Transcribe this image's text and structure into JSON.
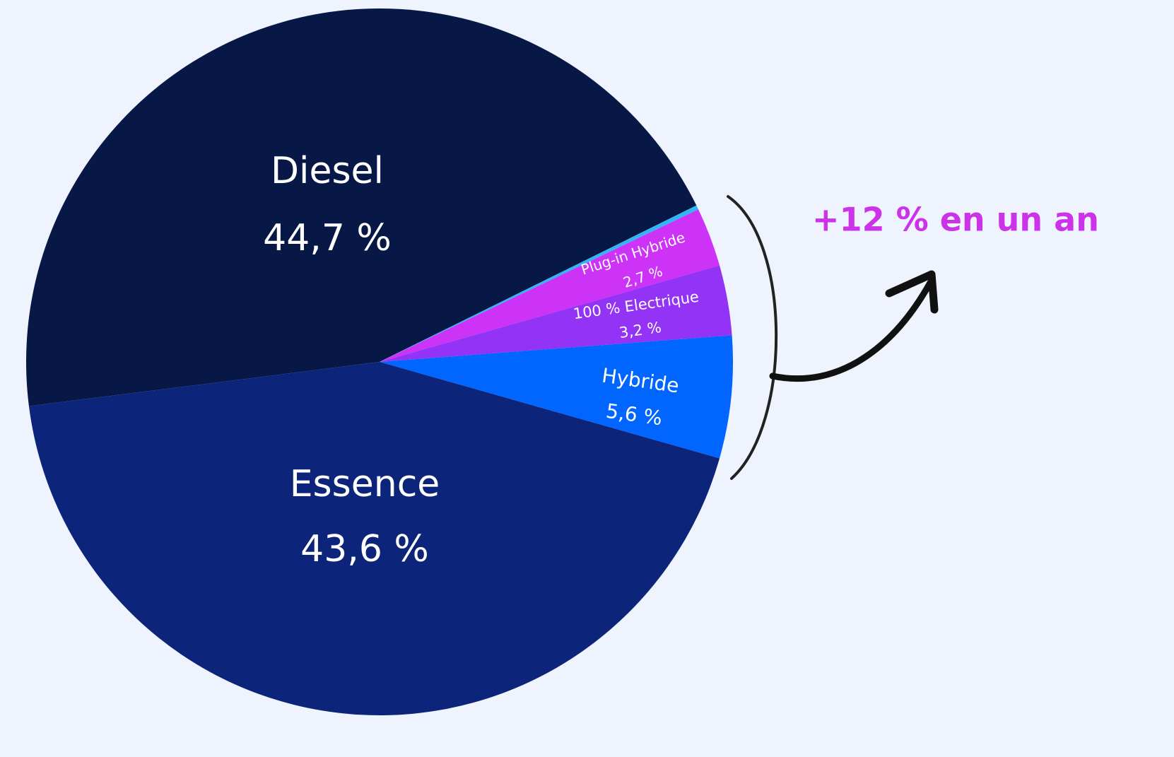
{
  "chart_data": {
    "type": "pie",
    "categories": [
      "Diesel",
      null,
      "Plug-in Hybride",
      "100 % Electrique",
      "Hybride",
      "Essence"
    ],
    "values": [
      44.7,
      0.2,
      2.7,
      3.2,
      5.6,
      43.6
    ],
    "value_labels": [
      "44,7 %",
      null,
      "2,7 %",
      "3,2 %",
      "5,6 %",
      "43,6 %"
    ],
    "colors": [
      "#071746",
      "#33b5f5",
      "#cc33f7",
      "#9333f5",
      "#0066ff",
      "#0c257a"
    ],
    "annotation": "+12 % en un an"
  }
}
